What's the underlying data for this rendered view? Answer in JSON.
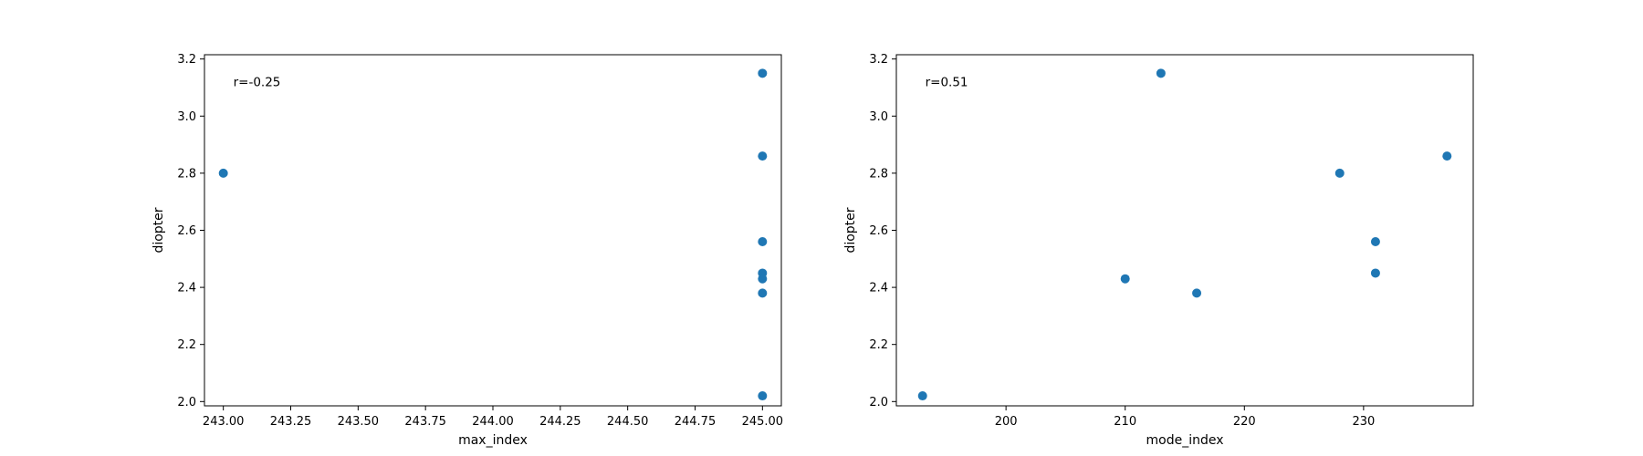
{
  "chart_data": [
    {
      "type": "scatter",
      "xlabel": "max_index",
      "ylabel": "diopter",
      "annotation": "r=-0.25",
      "xlim": [
        242.93,
        245.07
      ],
      "ylim": [
        1.985,
        3.215
      ],
      "xticks": [
        243.0,
        243.25,
        243.5,
        243.75,
        244.0,
        244.25,
        244.5,
        244.75,
        245.0
      ],
      "xtick_labels": [
        "243.00",
        "243.25",
        "243.50",
        "243.75",
        "244.00",
        "244.25",
        "244.50",
        "244.75",
        "245.00"
      ],
      "yticks": [
        2.0,
        2.2,
        2.4,
        2.6,
        2.8,
        3.0,
        3.2
      ],
      "ytick_labels": [
        "2.0",
        "2.2",
        "2.4",
        "2.6",
        "2.8",
        "3.0",
        "3.2"
      ],
      "grid": false,
      "marker_color": "#1f77b4",
      "points": [
        {
          "x": 243.0,
          "y": 2.8
        },
        {
          "x": 245.0,
          "y": 3.15
        },
        {
          "x": 245.0,
          "y": 2.86
        },
        {
          "x": 245.0,
          "y": 2.56
        },
        {
          "x": 245.0,
          "y": 2.45
        },
        {
          "x": 245.0,
          "y": 2.43
        },
        {
          "x": 245.0,
          "y": 2.38
        },
        {
          "x": 245.0,
          "y": 2.02
        }
      ]
    },
    {
      "type": "scatter",
      "xlabel": "mode_index",
      "ylabel": "diopter",
      "annotation": "r=0.51",
      "xlim": [
        190.8,
        239.2
      ],
      "ylim": [
        1.985,
        3.215
      ],
      "xticks": [
        200,
        210,
        220,
        230
      ],
      "xtick_labels": [
        "200",
        "210",
        "220",
        "230"
      ],
      "yticks": [
        2.0,
        2.2,
        2.4,
        2.6,
        2.8,
        3.0,
        3.2
      ],
      "ytick_labels": [
        "2.0",
        "2.2",
        "2.4",
        "2.6",
        "2.8",
        "3.0",
        "3.2"
      ],
      "grid": false,
      "marker_color": "#1f77b4",
      "points": [
        {
          "x": 193,
          "y": 2.02
        },
        {
          "x": 210,
          "y": 2.43
        },
        {
          "x": 213,
          "y": 3.15
        },
        {
          "x": 216,
          "y": 2.38
        },
        {
          "x": 228,
          "y": 2.8
        },
        {
          "x": 231,
          "y": 2.56
        },
        {
          "x": 231,
          "y": 2.45
        },
        {
          "x": 237,
          "y": 2.86
        }
      ]
    }
  ]
}
